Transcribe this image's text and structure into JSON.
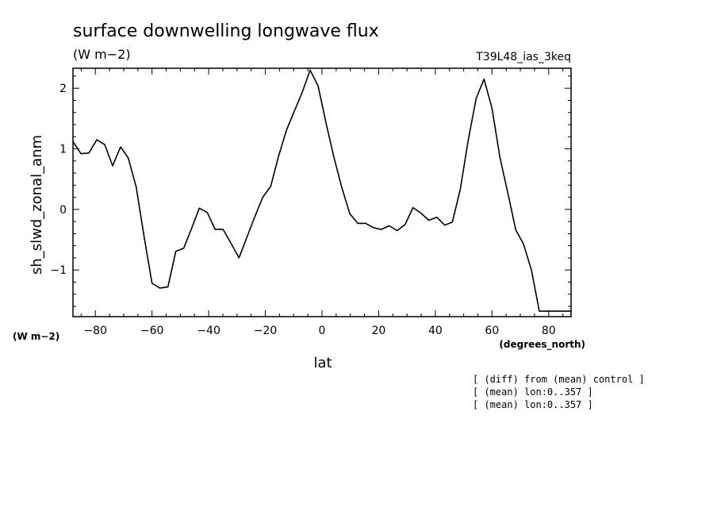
{
  "chart_data": {
    "type": "line",
    "title": "surface downwelling longwave flux",
    "subtitle": "(W m−2)",
    "run_label": "T39L48_ias_3keq",
    "xlabel": "lat",
    "xunits": "(degrees_north)",
    "ylabel": "sh_slwd_zonal_anm",
    "yunits": "(W m−2)",
    "xlim": [
      -87.9,
      87.9
    ],
    "ylim": [
      -1.77,
      2.33
    ],
    "x_ticks": [
      -80,
      -60,
      -40,
      -20,
      0,
      20,
      40,
      60,
      80
    ],
    "x_tick_labels": [
      "−80",
      "−60",
      "−40",
      "−20",
      "0",
      "20",
      "40",
      "60",
      "80"
    ],
    "y_ticks": [
      -1,
      0,
      1,
      2
    ],
    "y_tick_labels": [
      "−1",
      "0",
      "1",
      "2"
    ],
    "grid": false,
    "series": [
      {
        "x": [
          -87.9,
          -85.1,
          -82.3,
          -79.5,
          -76.7,
          -73.9,
          -71.1,
          -68.4,
          -65.6,
          -62.8,
          -60.0,
          -57.2,
          -54.4,
          -51.6,
          -48.8,
          -46.0,
          -43.3,
          -40.5,
          -37.7,
          -34.9,
          -32.1,
          -29.3,
          -26.5,
          -23.7,
          -20.9,
          -18.1,
          -15.4,
          -12.6,
          -9.8,
          -7.0,
          -4.2,
          -1.4,
          1.4,
          4.2,
          7.0,
          9.8,
          12.6,
          15.4,
          18.1,
          20.9,
          23.7,
          26.5,
          29.3,
          32.1,
          34.9,
          37.7,
          40.5,
          43.3,
          46.0,
          48.8,
          51.6,
          54.4,
          57.2,
          60.0,
          62.8,
          65.6,
          68.4,
          71.1,
          73.9,
          76.7,
          79.5,
          82.3,
          85.1,
          87.9
        ],
        "y": [
          1.12,
          0.92,
          0.93,
          1.15,
          1.07,
          0.72,
          1.03,
          0.85,
          0.37,
          -0.45,
          -1.22,
          -1.3,
          -1.28,
          -0.69,
          -0.64,
          -0.31,
          0.02,
          -0.05,
          -0.33,
          -0.33,
          -0.56,
          -0.8,
          -0.46,
          -0.12,
          0.2,
          0.38,
          0.87,
          1.3,
          1.62,
          1.93,
          2.3,
          2.04,
          1.43,
          0.86,
          0.36,
          -0.07,
          -0.23,
          -0.23,
          -0.3,
          -0.33,
          -0.27,
          -0.35,
          -0.25,
          0.03,
          -0.06,
          -0.18,
          -0.13,
          -0.26,
          -0.21,
          0.33,
          1.14,
          1.83,
          2.15,
          1.67,
          0.86,
          0.27,
          -0.34,
          -0.57,
          -1.0,
          -1.68,
          -1.68,
          -1.68,
          -1.68,
          -1.68
        ]
      }
    ],
    "notes": [
      "[ (diff) from (mean) control ]",
      "[ (mean) lon:0..357 ]",
      "[ (mean) lon:0..357 ]"
    ]
  }
}
